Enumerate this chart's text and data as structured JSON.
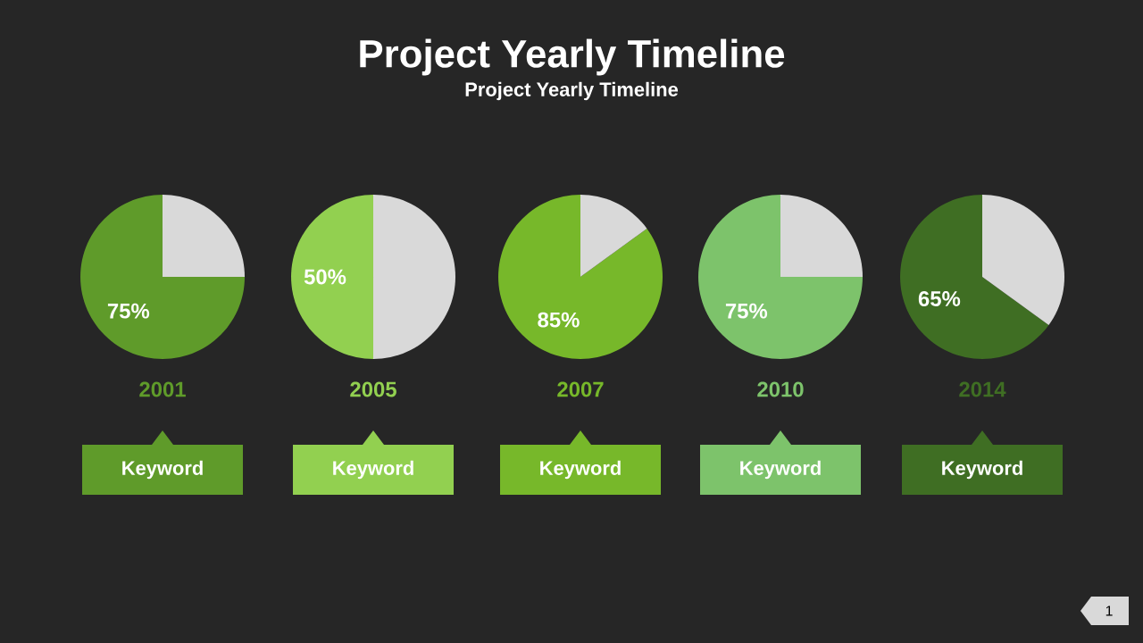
{
  "chart_data": [
    {
      "type": "other",
      "title": "Project Yearly Timeline",
      "subtitle": "Project Yearly Timeline",
      "annotations": [
        "1"
      ]
    },
    {
      "type": "pie",
      "categories": [
        null,
        null
      ],
      "values": [
        75,
        25
      ],
      "colors": [
        "#5f9b2a",
        "#d9d9d9"
      ],
      "value_labels": [
        "75%",
        null
      ],
      "xlabel": "2001",
      "annotations": [
        "Keyword"
      ]
    },
    {
      "type": "pie",
      "categories": [
        null,
        null
      ],
      "values": [
        50,
        50
      ],
      "colors": [
        "#92d050",
        "#d9d9d9"
      ],
      "value_labels": [
        "50%",
        null
      ],
      "xlabel": "2005",
      "annotations": [
        "Keyword"
      ]
    },
    {
      "type": "pie",
      "categories": [
        null,
        null
      ],
      "values": [
        85,
        15
      ],
      "colors": [
        "#77b82a",
        "#d9d9d9"
      ],
      "value_labels": [
        "85%",
        null
      ],
      "xlabel": "2007",
      "annotations": [
        "Keyword"
      ]
    },
    {
      "type": "pie",
      "categories": [
        null,
        null
      ],
      "values": [
        75,
        25
      ],
      "colors": [
        "#7dc36b",
        "#d9d9d9"
      ],
      "value_labels": [
        "75%",
        null
      ],
      "xlabel": "2010",
      "annotations": [
        "Keyword"
      ]
    },
    {
      "type": "pie",
      "categories": [
        null,
        null
      ],
      "values": [
        65,
        35
      ],
      "colors": [
        "#3f6e23",
        "#d9d9d9"
      ],
      "value_labels": [
        "65%",
        null
      ],
      "xlabel": "2014",
      "annotations": [
        "Keyword"
      ]
    }
  ]
}
